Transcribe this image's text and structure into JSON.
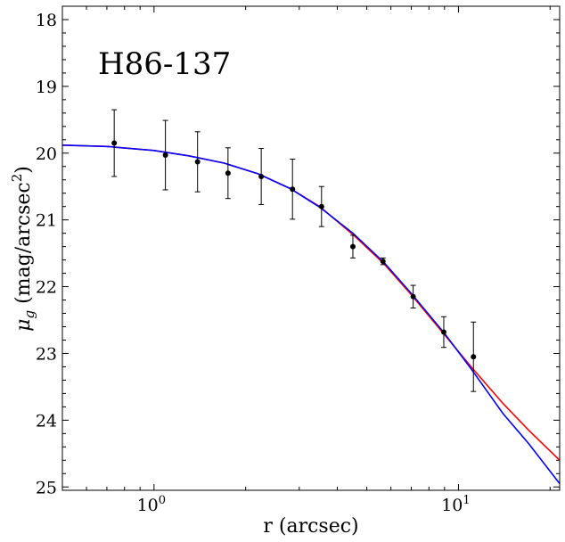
{
  "chart_data": {
    "type": "scatter",
    "title": "",
    "annotation": "H86-137",
    "xlabel": "r (arcsec)",
    "ylabel": "μ_g (mag/arcsec²)",
    "x_scale": "log",
    "xlim": [
      0.5,
      21.5
    ],
    "ylim": [
      25.05,
      17.8
    ],
    "y_inverted": true,
    "x_major_ticks": [
      {
        "value": 1,
        "base": "10",
        "exp": "0"
      },
      {
        "value": 10,
        "base": "10",
        "exp": "1"
      }
    ],
    "y_ticks": [
      18,
      19,
      20,
      21,
      22,
      23,
      24,
      25
    ],
    "grid": false,
    "legend": "none",
    "colors": {
      "points": "#000000",
      "model_red": "#ff0000",
      "model_blue": "#0000ff"
    },
    "series": [
      {
        "type": "scatter_errorbar",
        "x": [
          0.74,
          1.09,
          1.39,
          1.75,
          2.25,
          2.85,
          3.55,
          4.5,
          5.65,
          7.1,
          8.95,
          11.2
        ],
        "y": [
          19.85,
          20.03,
          20.13,
          20.3,
          20.35,
          20.54,
          20.8,
          21.4,
          21.62,
          22.15,
          22.68,
          23.05
        ],
        "yerr": [
          0.5,
          0.52,
          0.45,
          0.38,
          0.42,
          0.45,
          0.3,
          0.17,
          0.05,
          0.17,
          0.23,
          0.52
        ]
      },
      {
        "type": "line",
        "color": "red",
        "x": [
          0.5,
          0.7,
          1.0,
          1.3,
          1.7,
          2.2,
          2.8,
          3.5,
          4.5,
          5.7,
          7.0,
          9.0,
          11.0,
          14.0,
          17.0,
          21.5
        ],
        "y": [
          19.88,
          19.9,
          19.96,
          20.04,
          20.15,
          20.31,
          20.53,
          20.8,
          21.22,
          21.66,
          22.12,
          22.72,
          23.2,
          23.75,
          24.15,
          24.6
        ]
      },
      {
        "type": "line",
        "color": "blue",
        "x": [
          0.5,
          0.7,
          1.0,
          1.3,
          1.7,
          2.2,
          2.8,
          3.5,
          4.5,
          5.7,
          7.0,
          9.0,
          11.0,
          14.0,
          17.0,
          21.5
        ],
        "y": [
          19.88,
          19.9,
          19.96,
          20.04,
          20.15,
          20.31,
          20.53,
          20.81,
          21.2,
          21.64,
          22.1,
          22.7,
          23.23,
          23.9,
          24.35,
          24.95
        ]
      }
    ]
  }
}
